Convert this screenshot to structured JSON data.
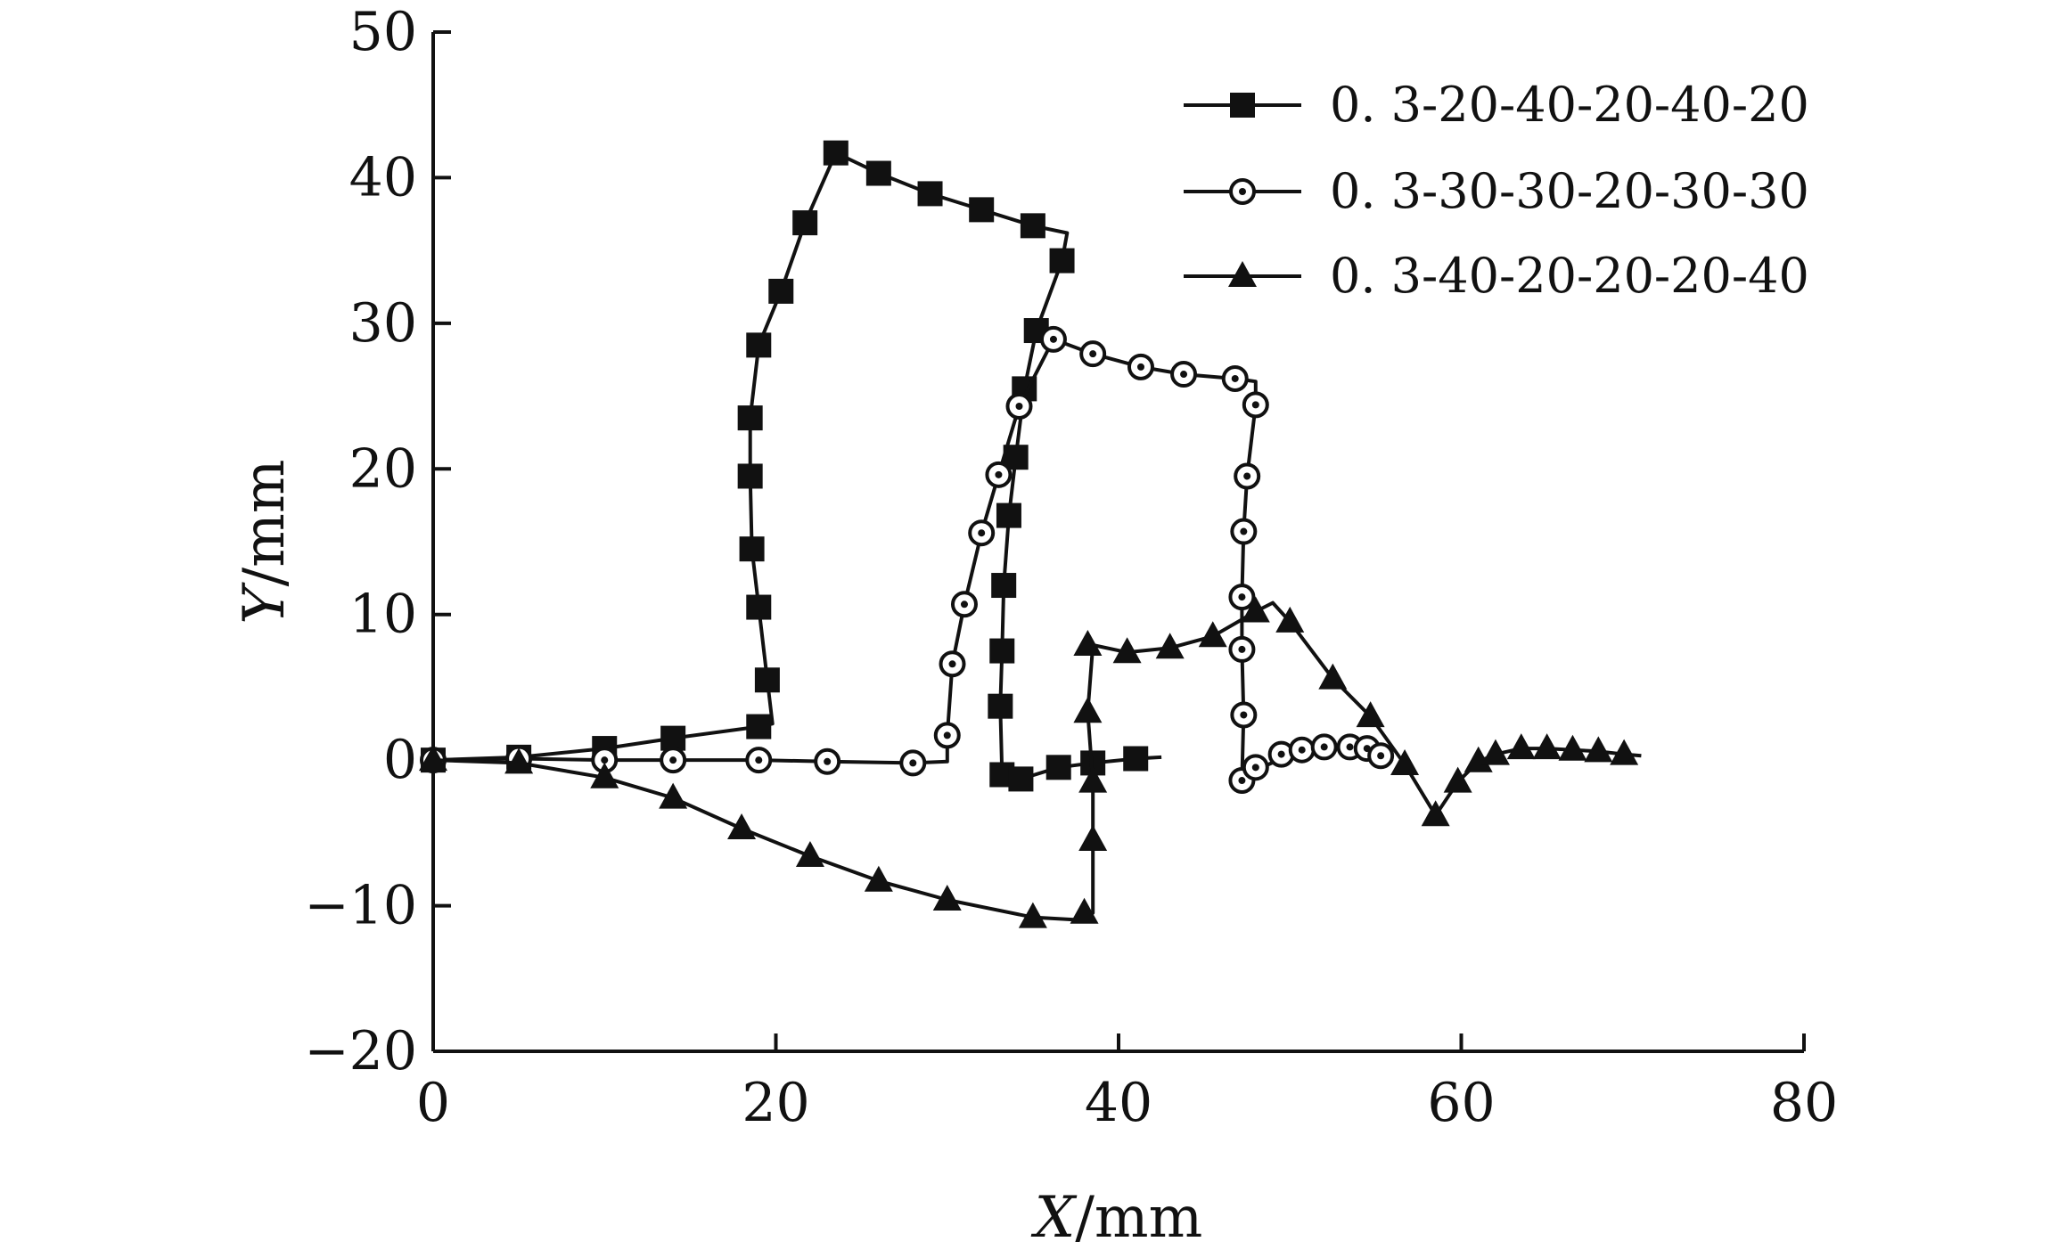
{
  "chart_data": {
    "type": "line",
    "xlabel": {
      "var": "X",
      "unit": "/mm"
    },
    "ylabel": {
      "var": "Y",
      "unit": "/mm"
    },
    "xlim": [
      0,
      80
    ],
    "ylim": [
      -20,
      50
    ],
    "xticks": [
      0,
      20,
      40,
      60,
      80
    ],
    "yticks": [
      -20,
      -10,
      0,
      10,
      20,
      30,
      40,
      50
    ],
    "xtick_labels": [
      "0",
      "20",
      "40",
      "60",
      "80"
    ],
    "ytick_labels": [
      "−20",
      "−10",
      "0",
      "10",
      "20",
      "30",
      "40",
      "50"
    ],
    "grid": false,
    "legend_position": "top-right",
    "series": [
      {
        "name": "0. 3-20-40-20-40-20",
        "marker": "filled-square",
        "line": [
          [
            0,
            0
          ],
          [
            5,
            0.2
          ],
          [
            10,
            0.8
          ],
          [
            14,
            1.5
          ],
          [
            19,
            2.3
          ],
          [
            19.8,
            2.5
          ],
          [
            19.5,
            5.5
          ],
          [
            19,
            10.5
          ],
          [
            18.6,
            14.5
          ],
          [
            18.5,
            19.5
          ],
          [
            18.5,
            23.5
          ],
          [
            19,
            28.5
          ],
          [
            20.3,
            32.2
          ],
          [
            21.7,
            36.9
          ],
          [
            23.5,
            41.7
          ],
          [
            26,
            40.3
          ],
          [
            29,
            38.9
          ],
          [
            32,
            37.8
          ],
          [
            35,
            36.7
          ],
          [
            37,
            36.2
          ],
          [
            36.7,
            34.3
          ],
          [
            35.2,
            29.5
          ],
          [
            34.5,
            25.5
          ],
          [
            34,
            20.8
          ],
          [
            33.6,
            16.8
          ],
          [
            33.3,
            12
          ],
          [
            33.2,
            7.5
          ],
          [
            33.1,
            3.7
          ],
          [
            33.2,
            -1
          ],
          [
            34.3,
            -1.3
          ],
          [
            36.5,
            -0.5
          ],
          [
            38.5,
            -0.2
          ],
          [
            41,
            0.1
          ],
          [
            42.5,
            0.2
          ]
        ],
        "markers": [
          [
            0,
            0
          ],
          [
            5,
            0.2
          ],
          [
            10,
            0.8
          ],
          [
            14,
            1.5
          ],
          [
            19,
            2.3
          ],
          [
            19.5,
            5.5
          ],
          [
            19,
            10.5
          ],
          [
            18.6,
            14.5
          ],
          [
            18.5,
            19.5
          ],
          [
            18.5,
            23.5
          ],
          [
            19,
            28.5
          ],
          [
            20.3,
            32.2
          ],
          [
            21.7,
            36.9
          ],
          [
            23.5,
            41.7
          ],
          [
            26,
            40.3
          ],
          [
            29,
            38.9
          ],
          [
            32,
            37.8
          ],
          [
            35,
            36.7
          ],
          [
            36.7,
            34.3
          ],
          [
            35.2,
            29.5
          ],
          [
            34.5,
            25.5
          ],
          [
            34,
            20.8
          ],
          [
            33.6,
            16.8
          ],
          [
            33.3,
            12
          ],
          [
            33.2,
            7.5
          ],
          [
            33.1,
            3.7
          ],
          [
            33.2,
            -1
          ],
          [
            34.3,
            -1.3
          ],
          [
            36.5,
            -0.5
          ],
          [
            38.5,
            -0.2
          ],
          [
            41,
            0.1
          ]
        ]
      },
      {
        "name": "0. 3-30-30-20-30-30",
        "marker": "open-circle",
        "line": [
          [
            0,
            0
          ],
          [
            5,
            0.1
          ],
          [
            10,
            0
          ],
          [
            14,
            0
          ],
          [
            19,
            0
          ],
          [
            23,
            -0.1
          ],
          [
            28,
            -0.2
          ],
          [
            30,
            -0.1
          ],
          [
            30,
            1.7
          ],
          [
            30.3,
            6.6
          ],
          [
            31,
            10.7
          ],
          [
            32,
            15.6
          ],
          [
            33,
            19.6
          ],
          [
            34.2,
            24.3
          ],
          [
            36.2,
            28.9
          ],
          [
            38.5,
            27.9
          ],
          [
            41.3,
            27
          ],
          [
            43.8,
            26.5
          ],
          [
            46.8,
            26.2
          ],
          [
            48,
            26
          ],
          [
            48,
            24.4
          ],
          [
            47.5,
            19.5
          ],
          [
            47.3,
            15.7
          ],
          [
            47.2,
            11.2
          ],
          [
            47.2,
            7.6
          ],
          [
            47.3,
            3.1
          ],
          [
            47.2,
            -1.4
          ],
          [
            48,
            -0.7
          ],
          [
            49.5,
            0.1
          ],
          [
            50.7,
            0.6
          ],
          [
            52,
            0.8
          ],
          [
            53.5,
            0.9
          ],
          [
            54.5,
            0.7
          ],
          [
            55.3,
            0.3
          ],
          [
            56,
            -0.1
          ]
        ],
        "markers": [
          [
            0,
            0
          ],
          [
            5,
            0.1
          ],
          [
            10,
            0
          ],
          [
            14,
            0
          ],
          [
            19,
            0
          ],
          [
            23,
            -0.1
          ],
          [
            28,
            -0.2
          ],
          [
            30,
            1.7
          ],
          [
            30.3,
            6.6
          ],
          [
            31,
            10.7
          ],
          [
            32,
            15.6
          ],
          [
            33,
            19.6
          ],
          [
            34.2,
            24.3
          ],
          [
            36.2,
            28.9
          ],
          [
            38.5,
            27.9
          ],
          [
            41.3,
            27
          ],
          [
            43.8,
            26.5
          ],
          [
            46.8,
            26.2
          ],
          [
            48,
            24.4
          ],
          [
            47.5,
            19.5
          ],
          [
            47.3,
            15.7
          ],
          [
            47.2,
            11.2
          ],
          [
            47.2,
            7.6
          ],
          [
            47.3,
            3.1
          ],
          [
            47.2,
            -1.4
          ],
          [
            48,
            -0.5
          ],
          [
            49.5,
            0.4
          ],
          [
            50.7,
            0.7
          ],
          [
            52,
            0.9
          ],
          [
            53.5,
            0.9
          ],
          [
            54.5,
            0.8
          ],
          [
            55.3,
            0.3
          ]
        ]
      },
      {
        "name": "0. 3-40-20-20-20-40",
        "marker": "filled-triangle",
        "line": [
          [
            0,
            0
          ],
          [
            5,
            -0.2
          ],
          [
            10,
            -1.2
          ],
          [
            14,
            -2.6
          ],
          [
            18,
            -4.7
          ],
          [
            22,
            -6.6
          ],
          [
            26,
            -8.3
          ],
          [
            30,
            -9.6
          ],
          [
            35,
            -10.8
          ],
          [
            38,
            -11
          ],
          [
            38.5,
            -10.5
          ],
          [
            38.5,
            -5.5
          ],
          [
            38.5,
            -1.5
          ],
          [
            38.2,
            3.3
          ],
          [
            38.5,
            7.9
          ],
          [
            40.5,
            7.4
          ],
          [
            43,
            7.7
          ],
          [
            45.5,
            8.5
          ],
          [
            48,
            10.2
          ],
          [
            49,
            10.8
          ],
          [
            50,
            9.5
          ],
          [
            52.5,
            5.6
          ],
          [
            54.7,
            3
          ],
          [
            56.7,
            -0.3
          ],
          [
            58.5,
            -3.8
          ],
          [
            59.8,
            -1.5
          ],
          [
            61,
            -0.1
          ],
          [
            62,
            0.4
          ],
          [
            63.5,
            0.8
          ],
          [
            65,
            0.8
          ],
          [
            66.5,
            0.7
          ],
          [
            68,
            0.6
          ],
          [
            69.5,
            0.4
          ],
          [
            70.5,
            0.3
          ]
        ],
        "markers": [
          [
            0,
            0
          ],
          [
            5,
            -0.2
          ],
          [
            10,
            -1.2
          ],
          [
            14,
            -2.6
          ],
          [
            18,
            -4.7
          ],
          [
            22,
            -6.6
          ],
          [
            26,
            -8.3
          ],
          [
            30,
            -9.6
          ],
          [
            35,
            -10.8
          ],
          [
            38,
            -10.5
          ],
          [
            38.5,
            -5.5
          ],
          [
            38.5,
            -1.5
          ],
          [
            38.2,
            3.3
          ],
          [
            38.2,
            7.9
          ],
          [
            40.5,
            7.4
          ],
          [
            43,
            7.7
          ],
          [
            45.5,
            8.5
          ],
          [
            48,
            10.2
          ],
          [
            50,
            9.5
          ],
          [
            52.5,
            5.6
          ],
          [
            54.7,
            3
          ],
          [
            56.7,
            -0.3
          ],
          [
            58.5,
            -3.8
          ],
          [
            59.8,
            -1.5
          ],
          [
            61,
            -0.1
          ],
          [
            62,
            0.4
          ],
          [
            63.5,
            0.8
          ],
          [
            65,
            0.8
          ],
          [
            66.5,
            0.7
          ],
          [
            68,
            0.6
          ],
          [
            69.5,
            0.4
          ]
        ]
      }
    ]
  }
}
